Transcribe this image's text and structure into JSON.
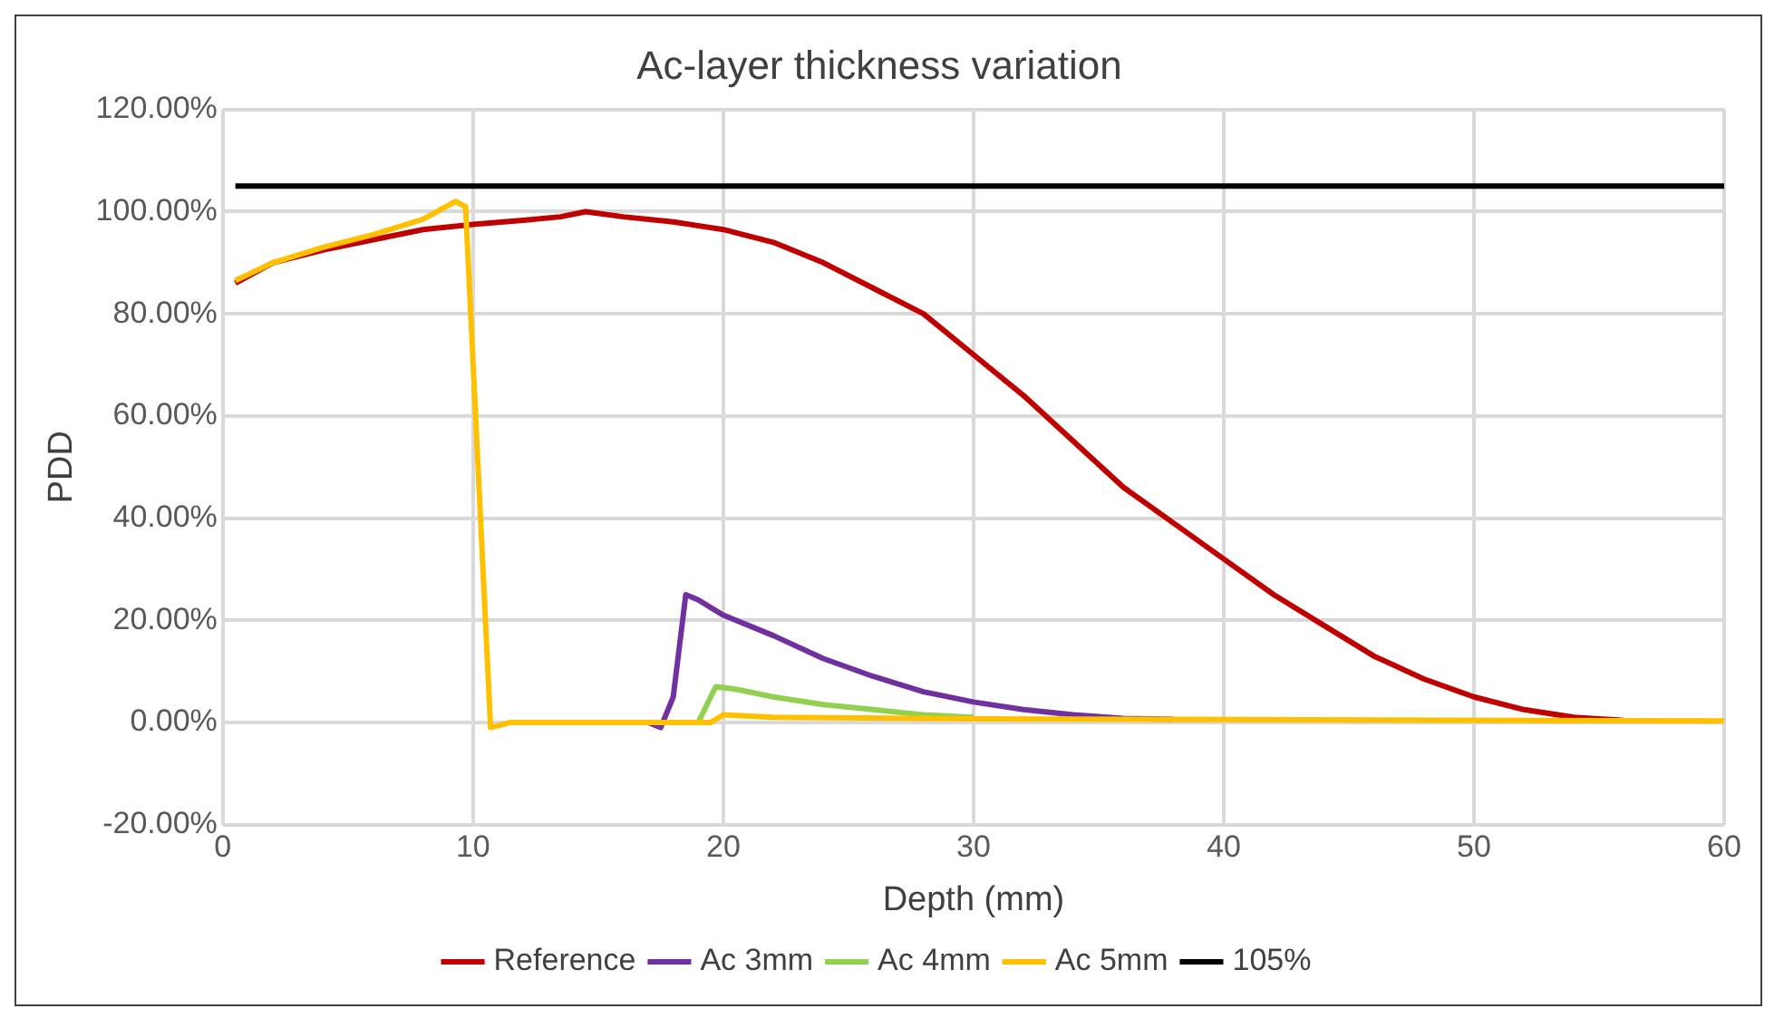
{
  "chart_data": {
    "type": "line",
    "title": "Ac-layer thickness variation",
    "xlabel": "Depth (mm)",
    "ylabel": "PDD",
    "xlim": [
      0,
      60
    ],
    "xticks": [
      0,
      10,
      20,
      30,
      40,
      50,
      60
    ],
    "ylim": [
      -20,
      120
    ],
    "yticks": [
      {
        "value": -20,
        "label": "-20.00%"
      },
      {
        "value": 0,
        "label": "0.00%"
      },
      {
        "value": 20,
        "label": "20.00%"
      },
      {
        "value": 40,
        "label": "40.00%"
      },
      {
        "value": 60,
        "label": "60.00%"
      },
      {
        "value": 80,
        "label": "80.00%"
      },
      {
        "value": 100,
        "label": "100.00%"
      },
      {
        "value": 120,
        "label": "120.00%"
      }
    ],
    "grid": true,
    "legend": "bottom",
    "marker": "none",
    "line_style": "solid",
    "series": [
      {
        "name": "Reference",
        "color": "#c00000",
        "x": [
          0.5,
          2,
          4,
          6,
          8,
          10,
          12,
          13.5,
          14.5,
          16,
          18,
          20,
          22,
          24,
          26,
          28,
          30,
          32,
          34,
          36,
          38,
          40,
          42,
          44,
          46,
          48,
          50,
          52,
          54,
          56
        ],
        "values": [
          86,
          90,
          92.5,
          94.5,
          96.5,
          97.5,
          98.3,
          99,
          100,
          99,
          98,
          96.5,
          94,
          90,
          85,
          80,
          72,
          64,
          55,
          46,
          39,
          32,
          25,
          19,
          13,
          8.5,
          5,
          2.5,
          1,
          0.4
        ]
      },
      {
        "name": "Ac 3mm",
        "color": "#7030a0",
        "x": [
          17,
          17.5,
          18,
          18.5,
          19,
          20,
          22,
          24,
          26,
          28,
          30,
          32,
          34,
          36,
          38
        ],
        "values": [
          0,
          -1,
          5,
          25,
          24,
          21,
          17,
          12.5,
          9,
          6,
          4,
          2.5,
          1.5,
          0.8,
          0.6
        ]
      },
      {
        "name": "Ac 4mm",
        "color": "#92d050",
        "x": [
          19,
          19.7,
          20.5,
          22,
          24,
          26,
          28,
          30
        ],
        "values": [
          0,
          7,
          6.5,
          5,
          3.5,
          2.5,
          1.5,
          1
        ]
      },
      {
        "name": "Ac 5mm",
        "color": "#ffc000",
        "x": [
          0.5,
          2,
          4,
          6,
          8,
          9.3,
          9.7,
          10.2,
          10.7,
          11.5,
          19.5,
          20,
          22,
          30,
          60
        ],
        "values": [
          86.5,
          90,
          93,
          95.5,
          98.5,
          102,
          101,
          50,
          -1,
          0,
          0,
          1.5,
          1,
          0.7,
          0.3
        ]
      },
      {
        "name": "105%",
        "color": "#000000",
        "x": [
          0.5,
          60
        ],
        "values": [
          105,
          105
        ]
      }
    ]
  }
}
